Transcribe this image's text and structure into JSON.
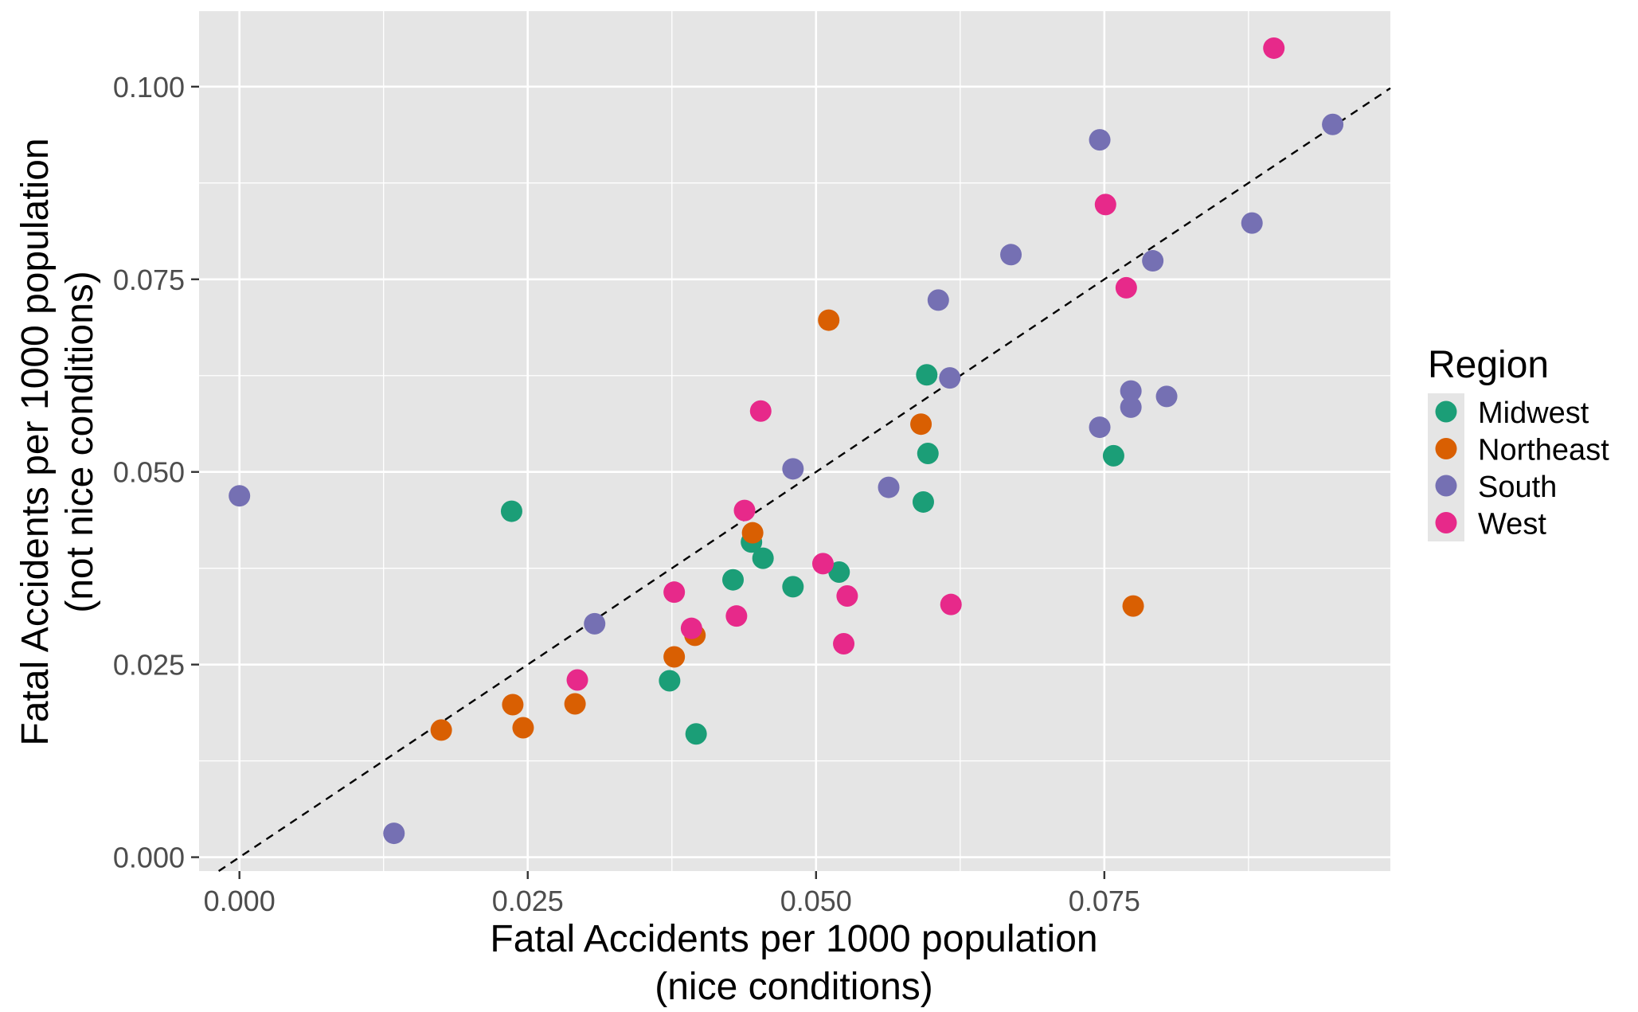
{
  "chart_data": {
    "type": "scatter",
    "title": "",
    "xlabel": [
      "Fatal Accidents per 1000 population",
      "(nice conditions)"
    ],
    "ylabel": [
      "Fatal Accidents per 1000 population",
      "(not nice conditions)"
    ],
    "xlim": [
      -0.0035,
      0.0998
    ],
    "ylim": [
      -0.0018,
      0.1098
    ],
    "x_ticks": [
      0.0,
      0.025,
      0.05,
      0.075
    ],
    "x_tick_labels": [
      "0.000",
      "0.025",
      "0.050",
      "0.075"
    ],
    "y_ticks": [
      0.0,
      0.025,
      0.05,
      0.075,
      0.1
    ],
    "y_tick_labels": [
      "0.000",
      "0.025",
      "0.050",
      "0.075",
      "0.100"
    ],
    "grid": true,
    "reference_line": {
      "style": "dashed",
      "slope": 1,
      "intercept": 0
    },
    "legend": {
      "title": "Region",
      "position": "right"
    },
    "series": [
      {
        "name": "Midwest",
        "color": "#1b9e77",
        "points": [
          [
            0.0236,
            0.0449
          ],
          [
            0.0373,
            0.0229
          ],
          [
            0.0396,
            0.016
          ],
          [
            0.0428,
            0.036
          ],
          [
            0.0444,
            0.0409
          ],
          [
            0.0454,
            0.0388
          ],
          [
            0.048,
            0.0351
          ],
          [
            0.052,
            0.037
          ],
          [
            0.0593,
            0.0461
          ],
          [
            0.0597,
            0.0524
          ],
          [
            0.0596,
            0.0626
          ],
          [
            0.0758,
            0.0521
          ]
        ]
      },
      {
        "name": "Northeast",
        "color": "#d95f02",
        "points": [
          [
            0.0175,
            0.0165
          ],
          [
            0.0237,
            0.0198
          ],
          [
            0.0246,
            0.0168
          ],
          [
            0.0291,
            0.0199
          ],
          [
            0.0377,
            0.026
          ],
          [
            0.0395,
            0.0288
          ],
          [
            0.0445,
            0.0421
          ],
          [
            0.0511,
            0.0697
          ],
          [
            0.0591,
            0.0562
          ],
          [
            0.0775,
            0.0326
          ]
        ]
      },
      {
        "name": "South",
        "color": "#7570b3",
        "points": [
          [
            0.0,
            0.0469
          ],
          [
            0.0134,
            0.0031
          ],
          [
            0.0308,
            0.0303
          ],
          [
            0.048,
            0.0504
          ],
          [
            0.0563,
            0.048
          ],
          [
            0.0606,
            0.0723
          ],
          [
            0.0616,
            0.0622
          ],
          [
            0.0669,
            0.0782
          ],
          [
            0.0746,
            0.0931
          ],
          [
            0.0746,
            0.0558
          ],
          [
            0.0773,
            0.0605
          ],
          [
            0.0773,
            0.0584
          ],
          [
            0.0792,
            0.0774
          ],
          [
            0.0804,
            0.0598
          ],
          [
            0.0878,
            0.0823
          ],
          [
            0.0948,
            0.0951
          ]
        ]
      },
      {
        "name": "West",
        "color": "#e7298a",
        "points": [
          [
            0.0293,
            0.023
          ],
          [
            0.0377,
            0.0344
          ],
          [
            0.0392,
            0.0297
          ],
          [
            0.0431,
            0.0313
          ],
          [
            0.0438,
            0.045
          ],
          [
            0.0452,
            0.0579
          ],
          [
            0.0506,
            0.0381
          ],
          [
            0.0524,
            0.0277
          ],
          [
            0.0527,
            0.0339
          ],
          [
            0.0617,
            0.0328
          ],
          [
            0.0751,
            0.0847
          ],
          [
            0.0769,
            0.0739
          ],
          [
            0.0897,
            0.105
          ]
        ]
      }
    ]
  }
}
